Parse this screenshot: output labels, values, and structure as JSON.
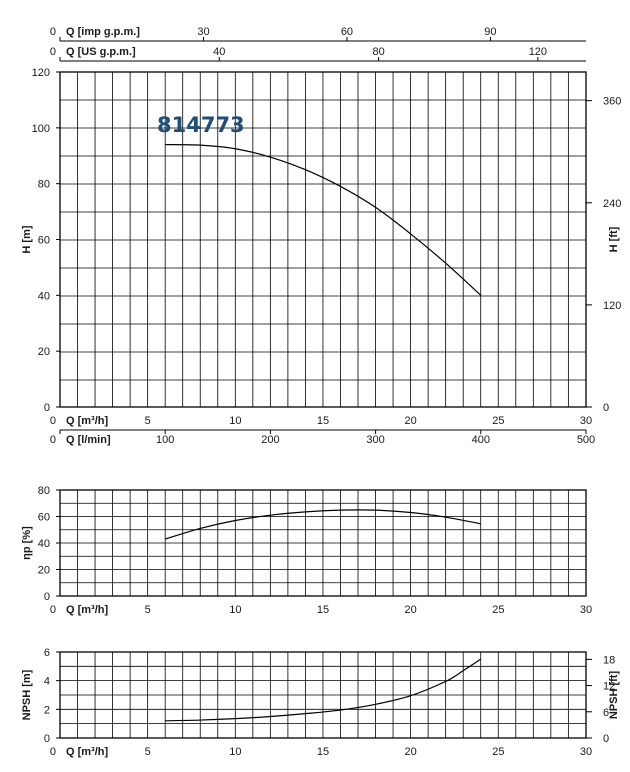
{
  "model_label": "814773",
  "colors": {
    "curve": "#000000",
    "grid": "#000000",
    "model_label": "#1f4e79"
  },
  "chart_data": [
    {
      "id": "head",
      "type": "line",
      "xlabel": "Q [m³/h]",
      "ylabel": "H [m]",
      "ylabel_right": "H [ft]",
      "xlim": [
        0,
        30
      ],
      "ylim": [
        0,
        120
      ],
      "xticks": [
        0,
        5,
        10,
        15,
        20,
        25,
        30
      ],
      "yticks": [
        0,
        20,
        40,
        60,
        80,
        100,
        120
      ],
      "yticks_right": [
        0,
        120,
        240,
        360
      ],
      "yticks_right_positions_m": [
        0,
        36.58,
        73.15,
        109.73
      ],
      "grid": true,
      "secondary_x_axes": [
        {
          "label": "Q [imp g.p.m.]",
          "position": "top",
          "ticks": [
            0,
            30,
            60,
            90
          ],
          "q_m3h_per_unit": 0.272765
        },
        {
          "label": "Q [US g.p.m.]",
          "position": "top",
          "ticks": [
            0,
            40,
            80,
            120
          ],
          "q_m3h_per_unit": 0.227125
        },
        {
          "label": "Q [l/min]",
          "position": "bottom",
          "ticks": [
            0,
            100,
            200,
            300,
            400,
            500
          ],
          "q_m3h_per_unit": 0.06
        }
      ],
      "series": [
        {
          "x": [
            6,
            8,
            10,
            12,
            14,
            16,
            18,
            20,
            22,
            24
          ],
          "y": [
            94,
            93.8,
            92.5,
            89.5,
            85,
            79,
            71.5,
            62,
            51.5,
            40
          ]
        }
      ]
    },
    {
      "id": "efficiency",
      "type": "line",
      "xlabel": "Q [m³/h]",
      "ylabel": "ηp [%]",
      "xlim": [
        0,
        30
      ],
      "ylim": [
        0,
        80
      ],
      "xticks": [
        0,
        5,
        10,
        15,
        20,
        25,
        30
      ],
      "yticks": [
        0,
        20,
        40,
        60,
        80
      ],
      "grid": true,
      "series": [
        {
          "x": [
            6,
            8,
            10,
            12,
            14,
            16,
            18,
            20,
            22,
            24
          ],
          "y": [
            43,
            51,
            57,
            61,
            63.5,
            64.8,
            64.8,
            63,
            59.5,
            54.5
          ]
        }
      ]
    },
    {
      "id": "npsh",
      "type": "line",
      "xlabel": "Q [m³/h]",
      "ylabel": "NPSH [m]",
      "ylabel_right": "NPSH [ft]",
      "xlim": [
        0,
        30
      ],
      "ylim": [
        0,
        6
      ],
      "xticks": [
        0,
        5,
        10,
        15,
        20,
        25,
        30
      ],
      "yticks": [
        0,
        2,
        4,
        6
      ],
      "yticks_right": [
        0,
        6,
        12,
        18
      ],
      "yticks_right_positions_m": [
        0,
        1.829,
        3.658,
        5.486
      ],
      "grid": true,
      "series": [
        {
          "x": [
            6,
            8,
            10,
            12,
            14,
            16,
            18,
            20,
            22,
            23,
            24
          ],
          "y": [
            1.2,
            1.25,
            1.35,
            1.5,
            1.7,
            1.95,
            2.35,
            2.95,
            3.95,
            4.7,
            5.5
          ]
        }
      ]
    }
  ]
}
